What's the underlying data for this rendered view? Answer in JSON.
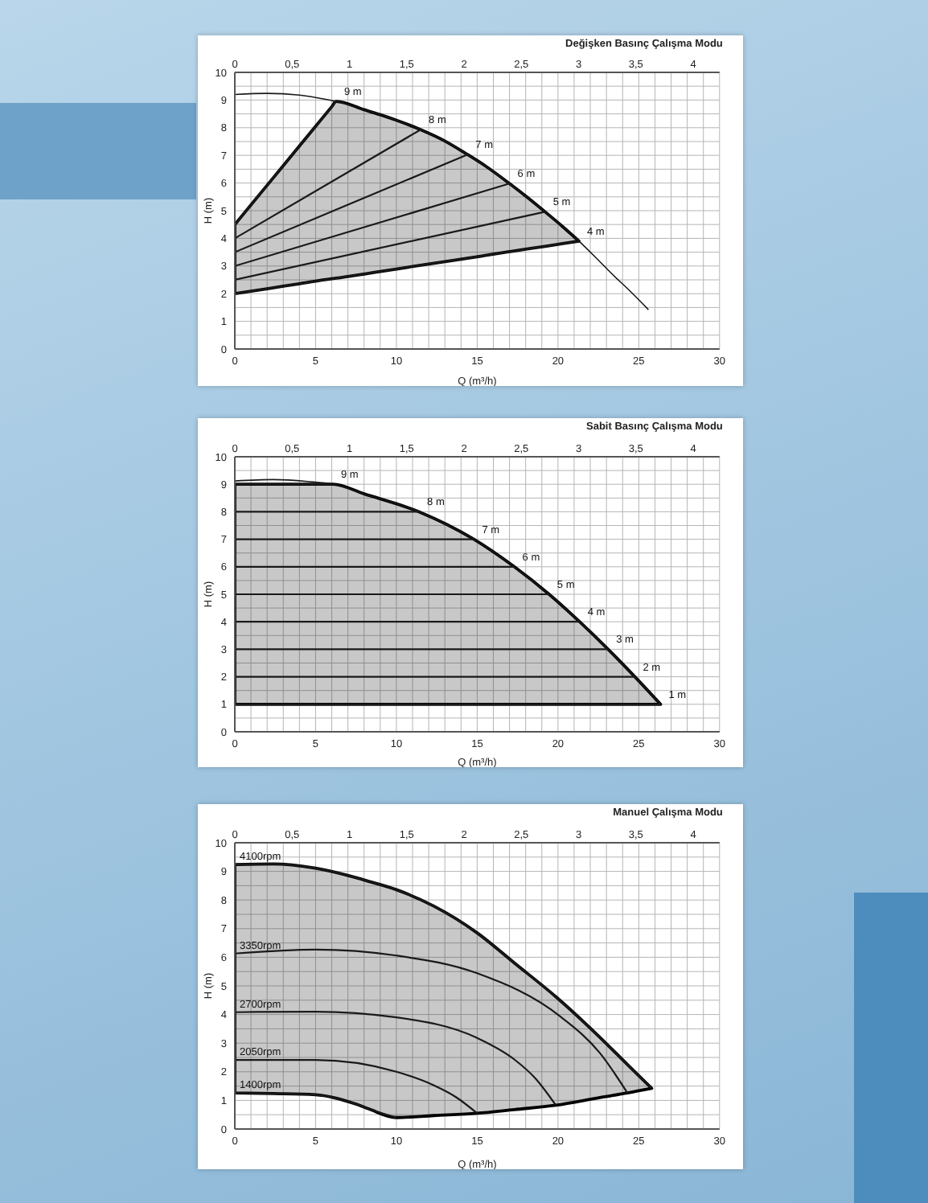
{
  "chart_data": [
    {
      "type": "line",
      "title": "Değişken Basınç Çalışma Modu",
      "xlabel": "Q (m³/h)",
      "ylabel": "H (m)",
      "xlim": [
        0,
        30
      ],
      "xticks": [
        0,
        {
          "value": 1,
          "label": null
        },
        {
          "value": 2,
          "label": null
        },
        {
          "value": 3,
          "label": null
        },
        {
          "value": 4,
          "label": null
        },
        5,
        {
          "value": 6,
          "label": null
        },
        {
          "value": 7,
          "label": null
        },
        {
          "value": 8,
          "label": null
        },
        {
          "value": 9,
          "label": null
        },
        10,
        {
          "value": 11,
          "label": null
        },
        {
          "value": 12,
          "label": null
        },
        {
          "value": 13,
          "label": null
        },
        {
          "value": 14,
          "label": null
        },
        15,
        {
          "value": 16,
          "label": null
        },
        {
          "value": 17,
          "label": null
        },
        {
          "value": 18,
          "label": null
        },
        {
          "value": 19,
          "label": null
        },
        20,
        {
          "value": 21,
          "label": null
        },
        {
          "value": 22,
          "label": null
        },
        {
          "value": 23,
          "label": null
        },
        {
          "value": 24,
          "label": null
        },
        25,
        {
          "value": 26,
          "label": null
        },
        {
          "value": 27,
          "label": null
        },
        {
          "value": 28,
          "label": null
        },
        {
          "value": 29,
          "label": null
        },
        30
      ],
      "ylim": [
        0,
        10
      ],
      "yticks": [
        0,
        {
          "value": 0.5,
          "label": null
        },
        1,
        {
          "value": 1.5,
          "label": null
        },
        2,
        {
          "value": 2.5,
          "label": null
        },
        3,
        {
          "value": 3.5,
          "label": null
        },
        4,
        {
          "value": 4.5,
          "label": null
        },
        5,
        {
          "value": 5.5,
          "label": null
        },
        6,
        {
          "value": 6.5,
          "label": null
        },
        7,
        {
          "value": 7.5,
          "label": null
        },
        8,
        {
          "value": 8.5,
          "label": null
        },
        9,
        {
          "value": 9.5,
          "label": null
        },
        10
      ],
      "x2lim": [
        0,
        4.23
      ],
      "x2ticks": [
        0,
        {
          "value": 0.5,
          "label": "0,5"
        },
        1,
        {
          "value": 1.5,
          "label": "1,5"
        },
        2,
        {
          "value": 2.5,
          "label": "2,5"
        },
        3,
        {
          "value": 3.5,
          "label": "3,5"
        },
        4
      ],
      "grid": true,
      "marker": "none",
      "series": [
        {
          "color": "#1a1a1a",
          "x": [
            0,
            2,
            4,
            6.0,
            6.27,
            8,
            9,
            10,
            11.5,
            13,
            14.4,
            15.5,
            17,
            18,
            19.2,
            20.3,
            21.3,
            22.3,
            23.3,
            24.5,
            25.6
          ],
          "values": [
            9.2,
            9.24,
            9.18,
            8.98,
            8.95,
            8.65,
            8.47,
            8.27,
            7.93,
            7.52,
            7.03,
            6.62,
            5.98,
            5.53,
            4.96,
            4.42,
            3.9,
            3.33,
            2.74,
            2.07,
            1.42
          ],
          "upper": [
            4.5,
            5.92,
            7.34,
            8.76,
            8.95,
            8.65,
            8.47,
            8.27,
            7.93,
            7.52,
            7.03,
            6.62,
            5.98,
            5.53,
            4.96,
            4.42,
            3.9,
            null,
            null,
            null,
            null
          ],
          "lower": [
            2.0,
            2.18,
            2.36,
            2.54,
            2.56,
            2.71,
            2.8,
            2.89,
            3.03,
            3.16,
            3.28,
            3.38,
            3.52,
            3.61,
            3.71,
            3.81,
            3.9,
            null,
            null,
            null,
            null
          ]
        },
        {
          "name": "9 m",
          "color": "#1a1a1a",
          "x": [
            0,
            6.27
          ],
          "values": [
            4.5,
            8.95
          ]
        },
        {
          "name": "8 m",
          "color": "#1a1a1a",
          "x": [
            0,
            11.5
          ],
          "values": [
            4.0,
            7.93
          ]
        },
        {
          "name": "7 m",
          "color": "#1a1a1a",
          "x": [
            0,
            14.4
          ],
          "values": [
            3.5,
            7.03
          ]
        },
        {
          "name": "6 m",
          "color": "#1a1a1a",
          "x": [
            0,
            17
          ],
          "values": [
            3.0,
            5.98
          ]
        },
        {
          "name": "5 m",
          "color": "#1a1a1a",
          "x": [
            0,
            19.2
          ],
          "values": [
            2.5,
            4.96
          ]
        },
        {
          "name": "4 m",
          "color": "#1a1a1a",
          "x": [
            0,
            21.3
          ],
          "values": [
            2.0,
            3.9
          ]
        }
      ]
    },
    {
      "type": "line",
      "title": "Sabit Basınç Çalışma Modu",
      "xlabel": "Q (m³/h)",
      "ylabel": "H (m)",
      "xlim": [
        0,
        30
      ],
      "xticks": [
        0,
        {
          "value": 1,
          "label": null
        },
        {
          "value": 2,
          "label": null
        },
        {
          "value": 3,
          "label": null
        },
        {
          "value": 4,
          "label": null
        },
        5,
        {
          "value": 6,
          "label": null
        },
        {
          "value": 7,
          "label": null
        },
        {
          "value": 8,
          "label": null
        },
        {
          "value": 9,
          "label": null
        },
        10,
        {
          "value": 11,
          "label": null
        },
        {
          "value": 12,
          "label": null
        },
        {
          "value": 13,
          "label": null
        },
        {
          "value": 14,
          "label": null
        },
        15,
        {
          "value": 16,
          "label": null
        },
        {
          "value": 17,
          "label": null
        },
        {
          "value": 18,
          "label": null
        },
        {
          "value": 19,
          "label": null
        },
        20,
        {
          "value": 21,
          "label": null
        },
        {
          "value": 22,
          "label": null
        },
        {
          "value": 23,
          "label": null
        },
        {
          "value": 24,
          "label": null
        },
        25,
        {
          "value": 26,
          "label": null
        },
        {
          "value": 27,
          "label": null
        },
        {
          "value": 28,
          "label": null
        },
        {
          "value": 29,
          "label": null
        },
        30
      ],
      "ylim": [
        0,
        10
      ],
      "yticks": [
        0,
        {
          "value": 0.5,
          "label": null
        },
        1,
        {
          "value": 1.5,
          "label": null
        },
        2,
        {
          "value": 2.5,
          "label": null
        },
        3,
        {
          "value": 3.5,
          "label": null
        },
        4,
        {
          "value": 4.5,
          "label": null
        },
        5,
        {
          "value": 5.5,
          "label": null
        },
        6,
        {
          "value": 6.5,
          "label": null
        },
        7,
        {
          "value": 7.5,
          "label": null
        },
        8,
        {
          "value": 8.5,
          "label": null
        },
        9,
        {
          "value": 9.5,
          "label": null
        },
        10
      ],
      "x2lim": [
        0,
        4.23
      ],
      "x2ticks": [
        0,
        {
          "value": 0.5,
          "label": "0,5"
        },
        1,
        {
          "value": 1.5,
          "label": "1,5"
        },
        2,
        {
          "value": 2.5,
          "label": "2,5"
        },
        3,
        {
          "value": 3.5,
          "label": "3,5"
        },
        4
      ],
      "grid": true,
      "marker": "none",
      "series": [
        {
          "color": "#1a1a1a",
          "x": [
            0,
            2.4,
            4.5,
            6.07,
            8,
            11.4,
            14.8,
            17.3,
            19.45,
            21.34,
            23.1,
            24.76,
            26.35
          ],
          "values": [
            9.12,
            9.17,
            9.1,
            9.0,
            8.65,
            8.0,
            7.0,
            6.0,
            5.0,
            4.0,
            3.0,
            2.0,
            1.0
          ],
          "upper": [
            9,
            9,
            9,
            9,
            8.65,
            8,
            7,
            6,
            5,
            4,
            3,
            2,
            1
          ],
          "lower": [
            1,
            1,
            1,
            1,
            1,
            1,
            1,
            1,
            1,
            1,
            1,
            1,
            1
          ]
        },
        {
          "name": "9 m",
          "color": "#1a1a1a",
          "x": [
            0,
            6.07
          ],
          "values": [
            9,
            9
          ]
        },
        {
          "name": "8 m",
          "color": "#1a1a1a",
          "x": [
            0,
            11.4
          ],
          "values": [
            8,
            8
          ]
        },
        {
          "name": "7 m",
          "color": "#1a1a1a",
          "x": [
            0,
            14.8
          ],
          "values": [
            7,
            7
          ]
        },
        {
          "name": "6 m",
          "color": "#1a1a1a",
          "x": [
            0,
            17.3
          ],
          "values": [
            6,
            6
          ]
        },
        {
          "name": "5 m",
          "color": "#1a1a1a",
          "x": [
            0,
            19.45
          ],
          "values": [
            5,
            5
          ]
        },
        {
          "name": "4 m",
          "color": "#1a1a1a",
          "x": [
            0,
            21.34
          ],
          "values": [
            4,
            4
          ]
        },
        {
          "name": "3 m",
          "color": "#1a1a1a",
          "x": [
            0,
            23.1
          ],
          "values": [
            3,
            3
          ]
        },
        {
          "name": "2 m",
          "color": "#1a1a1a",
          "x": [
            0,
            24.76
          ],
          "values": [
            2,
            2
          ]
        },
        {
          "name": "1 m",
          "color": "#1a1a1a",
          "x": [
            0,
            26.35
          ],
          "values": [
            1,
            1
          ]
        }
      ]
    },
    {
      "type": "line",
      "title": "Manuel Çalışma Modu",
      "xlabel": "Q (m³/h)",
      "ylabel": "H (m)",
      "xlim": [
        0,
        30
      ],
      "xticks": [
        0,
        {
          "value": 1,
          "label": null
        },
        {
          "value": 2,
          "label": null
        },
        {
          "value": 3,
          "label": null
        },
        {
          "value": 4,
          "label": null
        },
        5,
        {
          "value": 6,
          "label": null
        },
        {
          "value": 7,
          "label": null
        },
        {
          "value": 8,
          "label": null
        },
        {
          "value": 9,
          "label": null
        },
        10,
        {
          "value": 11,
          "label": null
        },
        {
          "value": 12,
          "label": null
        },
        {
          "value": 13,
          "label": null
        },
        {
          "value": 14,
          "label": null
        },
        15,
        {
          "value": 16,
          "label": null
        },
        {
          "value": 17,
          "label": null
        },
        {
          "value": 18,
          "label": null
        },
        {
          "value": 19,
          "label": null
        },
        20,
        {
          "value": 21,
          "label": null
        },
        {
          "value": 22,
          "label": null
        },
        {
          "value": 23,
          "label": null
        },
        {
          "value": 24,
          "label": null
        },
        25,
        {
          "value": 26,
          "label": null
        },
        {
          "value": 27,
          "label": null
        },
        {
          "value": 28,
          "label": null
        },
        {
          "value": 29,
          "label": null
        },
        30
      ],
      "ylim": [
        0,
        10
      ],
      "yticks": [
        0,
        {
          "value": 0.5,
          "label": null
        },
        1,
        {
          "value": 1.5,
          "label": null
        },
        2,
        {
          "value": 2.5,
          "label": null
        },
        3,
        {
          "value": 3.5,
          "label": null
        },
        4,
        {
          "value": 4.5,
          "label": null
        },
        5,
        {
          "value": 5.5,
          "label": null
        },
        6,
        {
          "value": 6.5,
          "label": null
        },
        7,
        {
          "value": 7.5,
          "label": null
        },
        8,
        {
          "value": 8.5,
          "label": null
        },
        9,
        {
          "value": 9.5,
          "label": null
        },
        10
      ],
      "x2lim": [
        0,
        4.23
      ],
      "x2ticks": [
        0,
        {
          "value": 0.5,
          "label": "0,5"
        },
        1,
        {
          "value": 1.5,
          "label": "1,5"
        },
        2,
        {
          "value": 2.5,
          "label": "2,5"
        },
        3,
        {
          "value": 3.5,
          "label": "3,5"
        },
        4
      ],
      "grid": true,
      "marker": "none",
      "series": [
        {
          "name": "4100rpm",
          "color": "#1a1a1a",
          "x": [
            0,
            2.36,
            5,
            7.5,
            8.3,
            10,
            12.3,
            15,
            17.3,
            19.87,
            22.6,
            24.3,
            25.8
          ],
          "values": [
            9.24,
            9.26,
            9.11,
            8.78,
            8.65,
            8.36,
            7.79,
            6.85,
            5.8,
            4.62,
            3.2,
            2.25,
            1.42
          ],
          "upper": [
            9.24,
            9.26,
            9.11,
            8.78,
            8.65,
            8.36,
            7.79,
            6.85,
            5.8,
            4.62,
            3.2,
            2.25,
            1.42
          ],
          "lower": [
            1.26,
            1.24,
            1.2,
            0.87,
            0.7,
            0.4,
            0.47,
            0.55,
            0.68,
            0.83,
            1.1,
            1.26,
            1.42
          ]
        },
        {
          "name": "3350rpm",
          "color": "#1a1a1a",
          "x": [
            0,
            5,
            10,
            15,
            20.15,
            22.6,
            24.3
          ],
          "values": [
            6.13,
            6.27,
            6.06,
            5.44,
            3.93,
            2.65,
            1.26
          ]
        },
        {
          "name": "2700rpm",
          "color": "#1a1a1a",
          "x": [
            0,
            5,
            10,
            15,
            17.3,
            18.6,
            19.87
          ],
          "values": [
            4.08,
            4.1,
            3.9,
            3.18,
            2.43,
            1.77,
            0.83
          ]
        },
        {
          "name": "2050rpm",
          "color": "#1a1a1a",
          "x": [
            0,
            5,
            10,
            12.3,
            13.7,
            15
          ],
          "values": [
            2.41,
            2.41,
            2.0,
            1.53,
            1.11,
            0.55
          ]
        },
        {
          "name": "1400rpm",
          "color": "#1a1a1a",
          "x": [
            0,
            5,
            7.5,
            8.3,
            10
          ],
          "values": [
            1.26,
            1.2,
            0.87,
            0.7,
            0.4
          ]
        }
      ]
    }
  ]
}
